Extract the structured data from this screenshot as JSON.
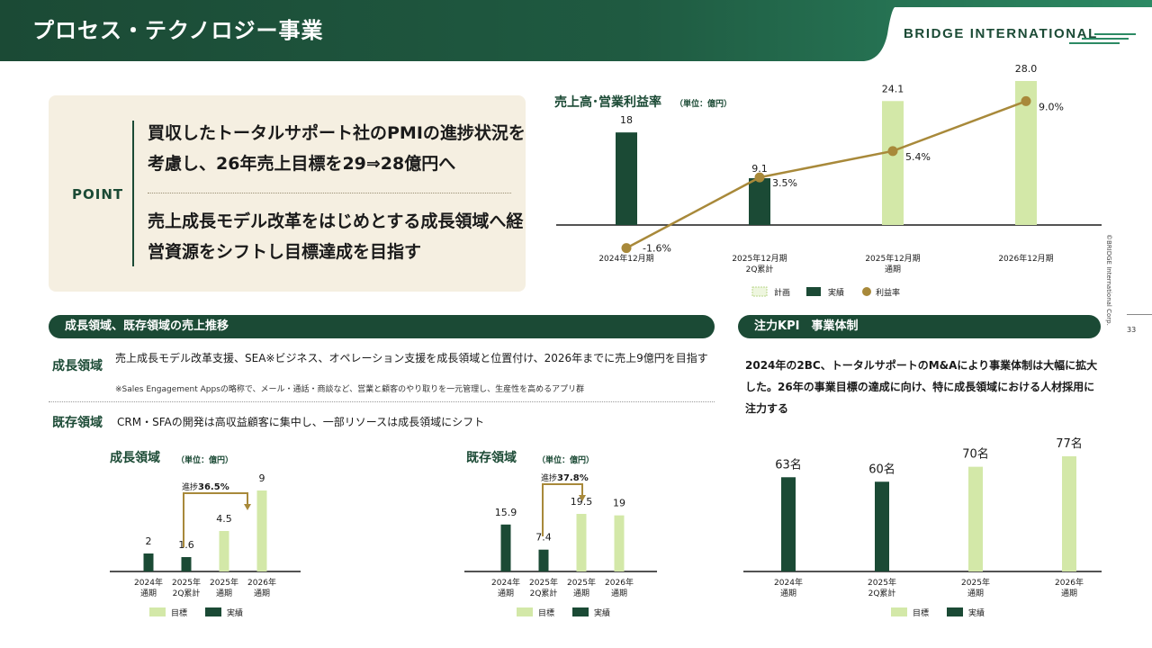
{
  "header": {
    "title": "プロセス・テクノロジー事業",
    "logo_text": "BRIDGE INTERNATIONAL"
  },
  "copyright": "©BRIDGE International Corp.",
  "page_number": "33",
  "point": {
    "label": "POINT",
    "text1": "買収したトータルサポート社のPMIの進捗状況を考慮し、26年売上目標を29⇒28億円へ",
    "text2": "売上成長モデル改革をはじめとする成長領域へ経営資源をシフトし目標達成を目指す"
  },
  "sections": {
    "growth": "成長領域、既存領域の売上推移",
    "kpi": "注力KPI　事業体制"
  },
  "segments": {
    "growth_label": "成長領域",
    "growth_desc": "売上成長モデル改革支援、SEA※ビジネス、オペレーション支援を成長領域と位置付け、2026年までに売上9億円を目指す",
    "growth_note": "※Sales Engagement Appsの略称で、メール・通話・商談など、営業と顧客のやり取りを一元管理し、生産性を高めるアプリ群",
    "existing_label": "既存領域",
    "existing_desc": "CRM・SFAの開発は高収益顧客に集中し、一部リソースは成長領域にシフト"
  },
  "kpi_text": "2024年の2BC、トータルサポートのM&Aにより事業体制は大幅に拡大した。26年の事業目標の達成に向け、特に成長領域における人材採用に注力する",
  "colors": {
    "dark_green": "#1b4a35",
    "light_green": "#d3e8a8",
    "gold": "#a8893a",
    "beige": "#f5efe1"
  },
  "chart_data": [
    {
      "id": "sales",
      "type": "bar",
      "title": "売上高･営業利益率",
      "unit": "（単位：億円）",
      "categories": [
        [
          "2024年12月期"
        ],
        [
          "2025年12月期",
          "2Q累計"
        ],
        [
          "2025年12月期",
          "通期"
        ],
        [
          "2026年12月期"
        ]
      ],
      "series": [
        {
          "name": "実績",
          "values": [
            18,
            9.1,
            null,
            null
          ],
          "labels": [
            "18",
            "9.1",
            "",
            ""
          ]
        },
        {
          "name": "計画",
          "values": [
            null,
            null,
            24.1,
            28.0
          ],
          "labels": [
            "",
            "",
            "24.1",
            "28.0"
          ]
        },
        {
          "name": "利益率",
          "values": [
            -1.6,
            3.5,
            5.4,
            9.0
          ],
          "labels": [
            "-1.6%",
            "3.5%",
            "5.4%",
            "9.0%"
          ]
        }
      ],
      "legend": [
        "計画",
        "実績",
        "利益率"
      ]
    },
    {
      "id": "growth",
      "type": "bar",
      "title": "成長領域",
      "unit": "（単位：億円）",
      "categories": [
        [
          "2024年",
          "通期"
        ],
        [
          "2025年",
          "2Q累計"
        ],
        [
          "2025年",
          "通期"
        ],
        [
          "2026年",
          "通期"
        ]
      ],
      "series": [
        {
          "name": "実績",
          "values": [
            2,
            1.6,
            null,
            null
          ],
          "labels": [
            "2",
            "1.6",
            "",
            ""
          ]
        },
        {
          "name": "目標",
          "values": [
            null,
            null,
            4.5,
            9
          ],
          "labels": [
            "",
            "",
            "4.5",
            "9"
          ]
        }
      ],
      "annotation": {
        "prefix": "進捗",
        "value": "36.5%"
      },
      "legend": [
        "目標",
        "実績"
      ]
    },
    {
      "id": "existing",
      "type": "bar",
      "title": "既存領域",
      "unit": "（単位：億円）",
      "categories": [
        [
          "2024年",
          "通期"
        ],
        [
          "2025年",
          "2Q累計"
        ],
        [
          "2025年",
          "通期"
        ],
        [
          "2026年",
          "通期"
        ]
      ],
      "series": [
        {
          "name": "実績",
          "values": [
            15.9,
            7.4,
            null,
            null
          ],
          "labels": [
            "15.9",
            "7.4",
            "",
            ""
          ]
        },
        {
          "name": "目標",
          "values": [
            null,
            null,
            19.5,
            19
          ],
          "labels": [
            "",
            "",
            "19.5",
            "19"
          ]
        }
      ],
      "annotation": {
        "prefix": "進捗",
        "value": "37.8%"
      },
      "legend": [
        "目標",
        "実績"
      ]
    },
    {
      "id": "headcount",
      "type": "bar",
      "categories": [
        [
          "2024年",
          "通期"
        ],
        [
          "2025年",
          "2Q累計"
        ],
        [
          "2025年",
          "通期"
        ],
        [
          "2026年",
          "通期"
        ]
      ],
      "series": [
        {
          "name": "実績",
          "values": [
            63,
            60,
            null,
            null
          ],
          "labels": [
            "63名",
            "60名",
            "",
            ""
          ]
        },
        {
          "name": "目標",
          "values": [
            null,
            null,
            70,
            77
          ],
          "labels": [
            "",
            "",
            "70名",
            "77名"
          ]
        }
      ],
      "legend": [
        "目標",
        "実績"
      ]
    }
  ]
}
